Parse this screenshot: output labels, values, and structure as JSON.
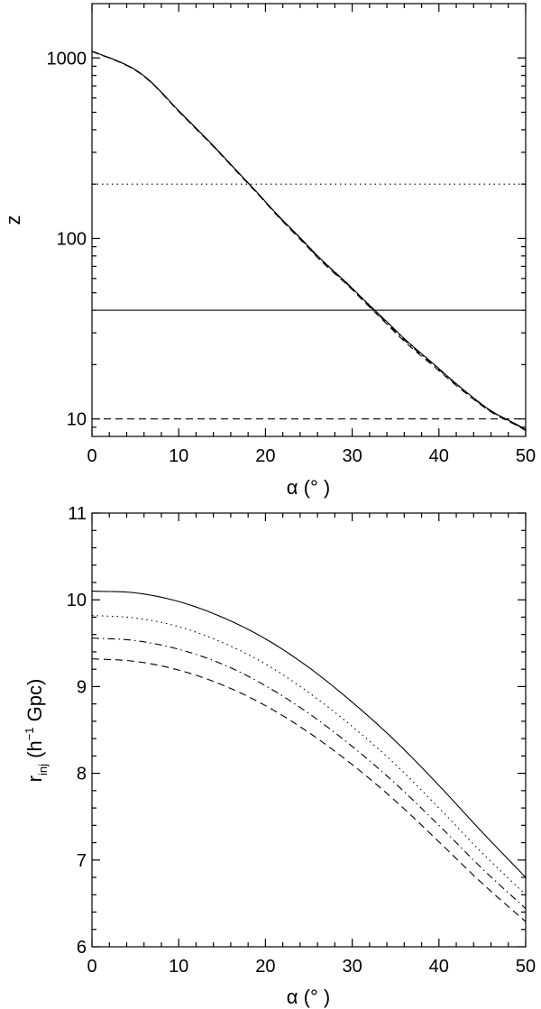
{
  "chart_data": [
    {
      "type": "line",
      "panel": "top",
      "xlabel": "α (° )",
      "ylabel": "z",
      "xlim": [
        0,
        50
      ],
      "ylim": [
        8,
        2000
      ],
      "yscale": "log",
      "xticks": [
        0,
        10,
        20,
        30,
        40,
        50
      ],
      "xtick_labels": [
        "0",
        "10",
        "20",
        "30",
        "40",
        "50"
      ],
      "yticks": [
        10,
        100,
        1000
      ],
      "ytick_labels": [
        "10",
        "100",
        "1000"
      ],
      "series": [
        {
          "style": "solid",
          "x": [
            0,
            5,
            10,
            15,
            20,
            25,
            30,
            35,
            40,
            45,
            50
          ],
          "y": [
            1090,
            860,
            510,
            290,
            160,
            90,
            53,
            31,
            19,
            12,
            8.7
          ]
        },
        {
          "style": "dashed",
          "x": [
            0,
            5,
            10,
            15,
            20,
            25,
            30,
            35,
            40,
            45,
            50
          ],
          "y": [
            1085,
            855,
            505,
            287,
            158,
            88,
            52,
            30,
            18.5,
            11.8,
            8.6
          ]
        },
        {
          "style": "dash-dot",
          "x": [
            0,
            5,
            10,
            15,
            20,
            25,
            30,
            35,
            40,
            45,
            50
          ],
          "y": [
            1088,
            858,
            508,
            289,
            159,
            89,
            52.5,
            30.5,
            18.8,
            11.9,
            8.65
          ]
        },
        {
          "style": "dotted",
          "x": [
            0,
            5,
            10,
            15,
            20,
            25,
            30,
            35,
            40,
            45,
            50
          ],
          "y": [
            1089,
            859,
            509,
            290,
            160,
            90,
            53,
            31,
            19,
            12,
            8.7
          ]
        }
      ],
      "hlines": [
        {
          "y": 200,
          "style": "dotted"
        },
        {
          "y": 40,
          "style": "solid"
        },
        {
          "y": 10,
          "style": "dashed"
        }
      ]
    },
    {
      "type": "line",
      "panel": "bottom",
      "xlabel": "α (° )",
      "ylabel_main": "r",
      "ylabel_sub": "inj",
      "ylabel_rest": " (h",
      "ylabel_sup": "−1",
      "ylabel_end": " Gpc)",
      "xlim": [
        0,
        50
      ],
      "ylim": [
        6,
        11
      ],
      "xticks": [
        0,
        10,
        20,
        30,
        40,
        50
      ],
      "xtick_labels": [
        "0",
        "10",
        "20",
        "30",
        "40",
        "50"
      ],
      "yticks": [
        6,
        7,
        8,
        9,
        10,
        11
      ],
      "ytick_labels": [
        "6",
        "7",
        "8",
        "9",
        "10",
        "11"
      ],
      "series": [
        {
          "style": "solid",
          "x": [
            0,
            5,
            10,
            15,
            20,
            25,
            30,
            35,
            40,
            45,
            50
          ],
          "y": [
            10.1,
            10.08,
            9.98,
            9.8,
            9.55,
            9.22,
            8.82,
            8.37,
            7.86,
            7.32,
            6.8
          ]
        },
        {
          "style": "dotted",
          "x": [
            0,
            5,
            10,
            15,
            20,
            25,
            30,
            35,
            40,
            45,
            50
          ],
          "y": [
            9.82,
            9.79,
            9.69,
            9.51,
            9.26,
            8.93,
            8.54,
            8.1,
            7.6,
            7.08,
            6.6
          ]
        },
        {
          "style": "dash-dot",
          "x": [
            0,
            5,
            10,
            15,
            20,
            25,
            30,
            35,
            40,
            45,
            50
          ],
          "y": [
            9.56,
            9.53,
            9.43,
            9.26,
            9.01,
            8.69,
            8.31,
            7.88,
            7.4,
            6.9,
            6.44
          ]
        },
        {
          "style": "dashed",
          "x": [
            0,
            5,
            10,
            15,
            20,
            25,
            30,
            35,
            40,
            45,
            50
          ],
          "y": [
            9.32,
            9.29,
            9.19,
            9.02,
            8.78,
            8.47,
            8.1,
            7.68,
            7.21,
            6.73,
            6.29
          ]
        }
      ]
    }
  ]
}
